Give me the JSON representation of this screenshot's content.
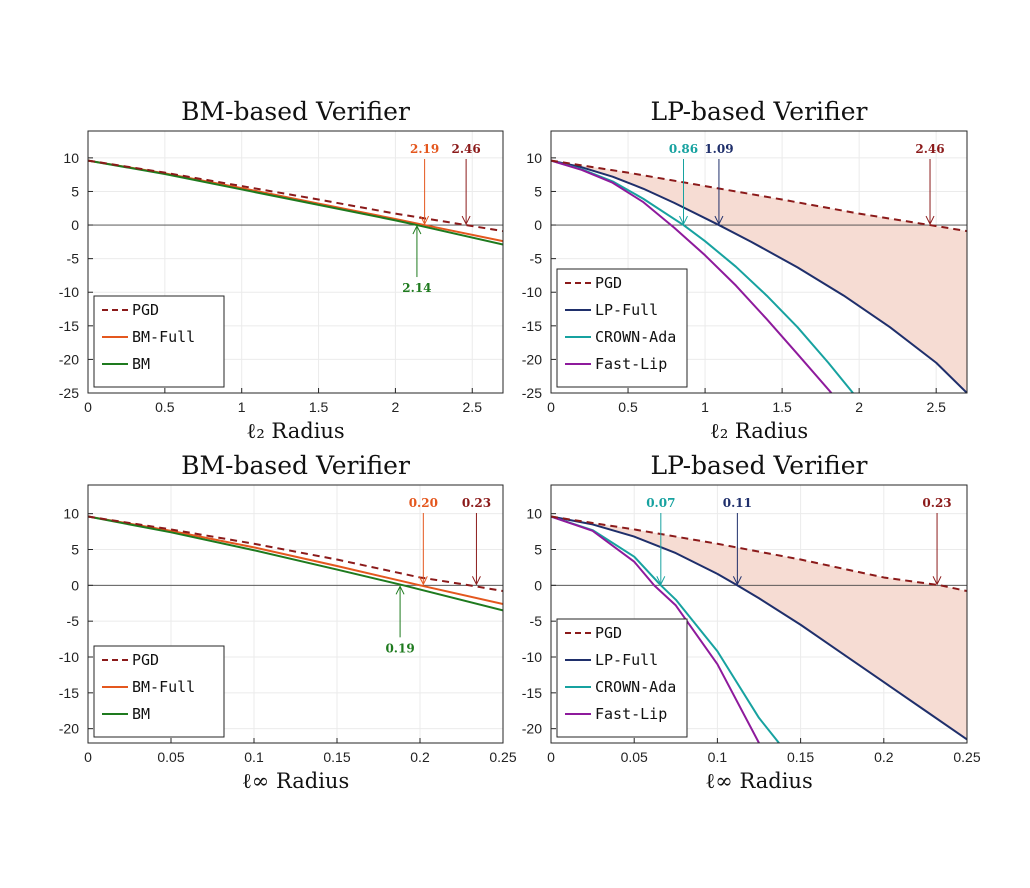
{
  "chart_data": [
    {
      "type": "line",
      "title": "BM-based Verifier",
      "xlabel": "ℓ₂ Radius",
      "ylabel": "",
      "xlim": [
        0,
        2.7
      ],
      "ylim": [
        -25,
        14
      ],
      "xticks": [
        0,
        0.5,
        1,
        1.5,
        2,
        2.5
      ],
      "xtick_labels": [
        "0",
        "0.5",
        "1",
        "1.5",
        "2",
        "2.5"
      ],
      "yticks": [
        10,
        5,
        0,
        -5,
        -10,
        -15,
        -20,
        -25
      ],
      "ytick_labels": [
        "10",
        "5",
        "0",
        "-5",
        "-10",
        "-15",
        "-20",
        "-25"
      ],
      "grid": true,
      "legend_position": "bottom-left",
      "series": [
        {
          "name": "PGD",
          "color": "#8b1a1a",
          "dash": true,
          "x": [
            0,
            0.5,
            1,
            1.5,
            2,
            2.46,
            2.7
          ],
          "y": [
            9.6,
            7.8,
            5.8,
            3.8,
            1.7,
            0,
            -0.9
          ]
        },
        {
          "name": "BM-Full",
          "color": "#e4571e",
          "dash": false,
          "x": [
            0,
            0.5,
            1,
            1.5,
            2,
            2.19,
            2.7
          ],
          "y": [
            9.6,
            7.7,
            5.5,
            3.2,
            0.9,
            0,
            -2.4
          ]
        },
        {
          "name": "BM",
          "color": "#1e7a1e",
          "dash": false,
          "x": [
            0,
            0.5,
            1,
            1.5,
            2,
            2.14,
            2.7
          ],
          "y": [
            9.6,
            7.6,
            5.3,
            3.0,
            0.7,
            0,
            -2.9
          ]
        }
      ],
      "fill_between": null,
      "annotations": [
        {
          "text": "2.19",
          "x": 2.19,
          "color": "#e4571e",
          "from": "top"
        },
        {
          "text": "2.46",
          "x": 2.46,
          "color": "#8b1a1a",
          "from": "top"
        },
        {
          "text": "2.14",
          "x": 2.14,
          "color": "#1e7a1e",
          "from": "bottom"
        }
      ]
    },
    {
      "type": "line",
      "title": "LP-based Verifier",
      "xlabel": "ℓ₂ Radius",
      "ylabel": "",
      "xlim": [
        0,
        2.7
      ],
      "ylim": [
        -25,
        14
      ],
      "xticks": [
        0,
        0.5,
        1,
        1.5,
        2,
        2.5
      ],
      "xtick_labels": [
        "0",
        "0.5",
        "1",
        "1.5",
        "2",
        "2.5"
      ],
      "yticks": [
        10,
        5,
        0,
        -5,
        -10,
        -15,
        -20,
        -25
      ],
      "ytick_labels": [
        "10",
        "5",
        "0",
        "-5",
        "-10",
        "-15",
        "-20",
        "-25"
      ],
      "grid": true,
      "legend_position": "bottom-left",
      "series": [
        {
          "name": "PGD",
          "color": "#8b1a1a",
          "dash": true,
          "x": [
            0,
            0.5,
            1,
            1.5,
            2,
            2.46,
            2.7
          ],
          "y": [
            9.6,
            7.8,
            5.8,
            3.8,
            1.7,
            0,
            -0.9
          ]
        },
        {
          "name": "LP-Full",
          "color": "#1f2f6b",
          "dash": false,
          "x": [
            0,
            0.2,
            0.4,
            0.6,
            0.8,
            1.09,
            1.3,
            1.6,
            1.9,
            2.2,
            2.5,
            2.7
          ],
          "y": [
            9.6,
            8.6,
            7.2,
            5.4,
            3.3,
            0,
            -2.5,
            -6.3,
            -10.5,
            -15.2,
            -20.5,
            -25
          ]
        },
        {
          "name": "CROWN-Ada",
          "color": "#17a2a0",
          "dash": false,
          "x": [
            0,
            0.2,
            0.4,
            0.6,
            0.86,
            1.0,
            1.2,
            1.4,
            1.6,
            1.8,
            1.96
          ],
          "y": [
            9.6,
            8.3,
            6.5,
            3.9,
            0,
            -2.4,
            -6.2,
            -10.5,
            -15.2,
            -20.5,
            -25
          ]
        },
        {
          "name": "Fast-Lip",
          "color": "#8e1a9c",
          "dash": false,
          "x": [
            0,
            0.2,
            0.4,
            0.6,
            0.8,
            1.0,
            1.2,
            1.4,
            1.6,
            1.82
          ],
          "y": [
            9.6,
            8.2,
            6.3,
            3.4,
            -0.4,
            -4.5,
            -9.0,
            -14.0,
            -19.2,
            -25
          ]
        }
      ],
      "fill_between": {
        "upper": "PGD",
        "lower": "LP-Full",
        "color": "#f6dcd3"
      },
      "annotations": [
        {
          "text": "0.86",
          "x": 0.86,
          "color": "#17a2a0",
          "from": "top"
        },
        {
          "text": "1.09",
          "x": 1.09,
          "color": "#1f2f6b",
          "from": "top"
        },
        {
          "text": "2.46",
          "x": 2.46,
          "color": "#8b1a1a",
          "from": "top"
        }
      ]
    },
    {
      "type": "line",
      "title": "BM-based Verifier",
      "xlabel": "ℓ∞ Radius",
      "ylabel": "",
      "xlim": [
        0,
        0.25
      ],
      "ylim": [
        -22,
        14
      ],
      "xticks": [
        0,
        0.05,
        0.1,
        0.15,
        0.2,
        0.25
      ],
      "xtick_labels": [
        "0",
        "0.05",
        "0.1",
        "0.15",
        "0.2",
        "0.25"
      ],
      "yticks": [
        10,
        5,
        0,
        -5,
        -10,
        -15,
        -20
      ],
      "ytick_labels": [
        "10",
        "5",
        "0",
        "-5",
        "-10",
        "-15",
        "-20"
      ],
      "grid": true,
      "legend_position": "bottom-left",
      "series": [
        {
          "name": "PGD",
          "color": "#8b1a1a",
          "dash": true,
          "x": [
            0,
            0.05,
            0.1,
            0.15,
            0.2,
            0.23,
            0.25
          ],
          "y": [
            9.6,
            7.8,
            5.8,
            3.6,
            1.1,
            0,
            -0.8
          ]
        },
        {
          "name": "BM-Full",
          "color": "#e4571e",
          "dash": false,
          "x": [
            0,
            0.05,
            0.1,
            0.15,
            0.2,
            0.25
          ],
          "y": [
            9.6,
            7.6,
            5.3,
            2.7,
            0,
            -2.6
          ]
        },
        {
          "name": "BM",
          "color": "#1e7a1e",
          "dash": false,
          "x": [
            0,
            0.05,
            0.1,
            0.15,
            0.19,
            0.25
          ],
          "y": [
            9.6,
            7.4,
            4.9,
            2.2,
            0,
            -3.5
          ]
        }
      ],
      "fill_between": null,
      "annotations": [
        {
          "text": "0.20",
          "x": 0.202,
          "color": "#e4571e",
          "from": "top"
        },
        {
          "text": "0.23",
          "x": 0.234,
          "color": "#8b1a1a",
          "from": "top"
        },
        {
          "text": "0.19",
          "x": 0.188,
          "color": "#1e7a1e",
          "from": "bottom"
        }
      ]
    },
    {
      "type": "line",
      "title": "LP-based Verifier",
      "xlabel": "ℓ∞ Radius",
      "ylabel": "",
      "xlim": [
        0,
        0.25
      ],
      "ylim": [
        -22,
        14
      ],
      "xticks": [
        0,
        0.05,
        0.1,
        0.15,
        0.2,
        0.25
      ],
      "xtick_labels": [
        "0",
        "0.05",
        "0.1",
        "0.15",
        "0.2",
        "0.25"
      ],
      "yticks": [
        10,
        5,
        0,
        -5,
        -10,
        -15,
        -20
      ],
      "ytick_labels": [
        "10",
        "5",
        "0",
        "-5",
        "-10",
        "-15",
        "-20"
      ],
      "grid": true,
      "legend_position": "bottom-left",
      "series": [
        {
          "name": "PGD",
          "color": "#8b1a1a",
          "dash": true,
          "x": [
            0,
            0.05,
            0.1,
            0.15,
            0.2,
            0.234,
            0.25
          ],
          "y": [
            9.6,
            7.8,
            5.8,
            3.6,
            1.1,
            0,
            -0.8
          ]
        },
        {
          "name": "LP-Full",
          "color": "#1f2f6b",
          "dash": false,
          "x": [
            0,
            0.025,
            0.05,
            0.075,
            0.1,
            0.112,
            0.125,
            0.15,
            0.175,
            0.2,
            0.225,
            0.25
          ],
          "y": [
            9.6,
            8.5,
            6.8,
            4.5,
            1.6,
            0,
            -1.8,
            -5.5,
            -9.5,
            -13.5,
            -17.5,
            -21.5
          ]
        },
        {
          "name": "CROWN-Ada",
          "color": "#17a2a0",
          "dash": false,
          "x": [
            0,
            0.025,
            0.05,
            0.066,
            0.075,
            0.1,
            0.125,
            0.137
          ],
          "y": [
            9.6,
            7.7,
            4.0,
            0,
            -2.0,
            -9.2,
            -18.5,
            -22
          ]
        },
        {
          "name": "Fast-Lip",
          "color": "#8e1a9c",
          "dash": false,
          "x": [
            0,
            0.025,
            0.05,
            0.062,
            0.075,
            0.1,
            0.125
          ],
          "y": [
            9.6,
            7.6,
            3.3,
            0,
            -2.8,
            -11.0,
            -22
          ]
        }
      ],
      "fill_between": {
        "upper": "PGD",
        "lower": "LP-Full",
        "color": "#f6dcd3"
      },
      "annotations": [
        {
          "text": "0.07",
          "x": 0.066,
          "color": "#17a2a0",
          "from": "top"
        },
        {
          "text": "0.11",
          "x": 0.112,
          "color": "#1f2f6b",
          "from": "top"
        },
        {
          "text": "0.23",
          "x": 0.232,
          "color": "#8b1a1a",
          "from": "top"
        }
      ]
    }
  ]
}
